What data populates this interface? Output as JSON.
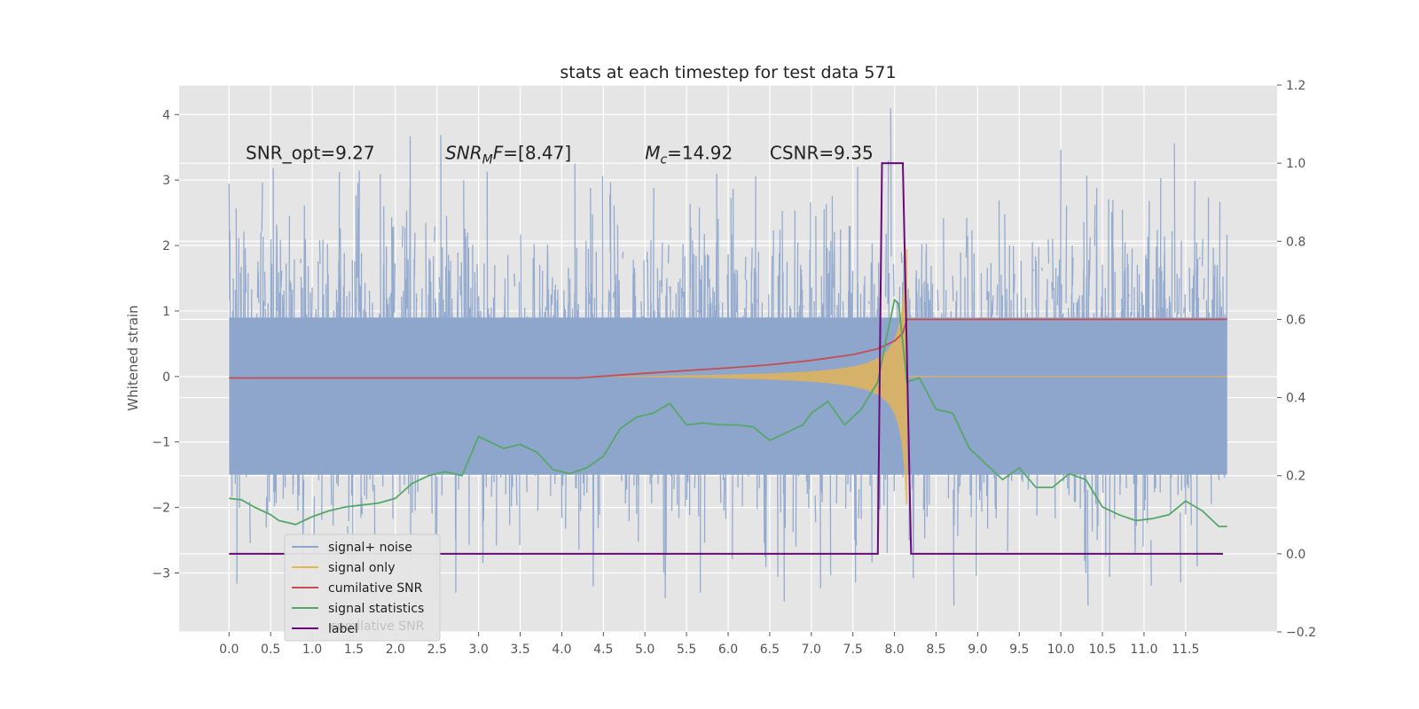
{
  "chart_data": {
    "type": "line",
    "title": "stats at each timestep for test data 571",
    "ylabel": "Whitened strain",
    "y2label": "",
    "xlim": [
      -0.6,
      12.6
    ],
    "ylim": [
      -3.9,
      4.45
    ],
    "y2lim": [
      -0.2,
      1.2
    ],
    "xticks": [
      "0.0",
      "0.5",
      "1.0",
      "1.5",
      "2.0",
      "2.5",
      "3.0",
      "3.5",
      "4.0",
      "4.5",
      "5.0",
      "5.5",
      "6.0",
      "6.5",
      "7.0",
      "7.5",
      "8.0",
      "8.5",
      "9.0",
      "9.5",
      "10.0",
      "10.5",
      "11.0",
      "11.5"
    ],
    "yticks": [
      "4",
      "3",
      "2",
      "1",
      "0",
      "−1",
      "−2",
      "−3"
    ],
    "y2ticks": [
      "1.2",
      "1.0",
      "0.8",
      "0.6",
      "0.4",
      "0.2",
      "0.0",
      "−0.2"
    ],
    "grid": true,
    "legend_position": "lower-left",
    "colors": {
      "signal_noise": "#8fa6cc",
      "signal_only": "#e6b451",
      "cumulative_snr": "#c44e52",
      "signal_statistics": "#55a868",
      "label": "#6a0a7a",
      "background": "#e5e5e5"
    },
    "annotations": [
      {
        "text": "SNR_opt=9.27",
        "x": 0.2,
        "y": 3.32
      },
      {
        "text": "=[8.47]",
        "x": 2.6,
        "y": 3.32,
        "prefix_italic": "SNR",
        "sub_italic": "M",
        "after_sub_italic": "F"
      },
      {
        "text": "=14.92",
        "x": 5.0,
        "y": 3.32,
        "prefix_italic": "M",
        "sub_italic": "c",
        "after_sub_italic": ""
      },
      {
        "text": "CSNR=9.35",
        "x": 6.5,
        "y": 3.32
      }
    ],
    "series": [
      {
        "name": "signal+ noise",
        "axis": "left",
        "style": "noise",
        "x_start": 0.0,
        "x_end": 12.0,
        "envelope_mid": 0.9,
        "envelope_low": -1.5
      },
      {
        "name": "signal only",
        "axis": "left",
        "style": "chirp",
        "x_start": 4.2,
        "x_merger": 8.15,
        "x_end": 12.0,
        "max_amp": 1.95
      },
      {
        "name": "cumilative SNR",
        "axis": "right",
        "x": [
          0.0,
          1.0,
          2.0,
          3.0,
          4.0,
          4.2,
          5.0,
          6.0,
          6.5,
          7.0,
          7.5,
          7.8,
          8.0,
          8.1,
          8.15,
          9.0,
          10.0,
          11.0,
          12.0
        ],
        "values": [
          0.45,
          0.45,
          0.45,
          0.45,
          0.45,
          0.45,
          0.462,
          0.476,
          0.484,
          0.495,
          0.51,
          0.525,
          0.545,
          0.565,
          0.6,
          0.6,
          0.6,
          0.6,
          0.6
        ]
      },
      {
        "name": "signal statistics",
        "axis": "right",
        "x": [
          0.0,
          0.15,
          0.3,
          0.5,
          0.6,
          0.8,
          1.0,
          1.2,
          1.4,
          1.6,
          1.8,
          2.0,
          2.2,
          2.4,
          2.6,
          2.8,
          3.0,
          3.1,
          3.3,
          3.5,
          3.7,
          3.9,
          4.1,
          4.3,
          4.5,
          4.7,
          4.9,
          5.1,
          5.3,
          5.5,
          5.7,
          5.9,
          6.1,
          6.3,
          6.5,
          6.7,
          6.9,
          7.0,
          7.2,
          7.4,
          7.6,
          7.8,
          7.9,
          8.0,
          8.05,
          8.15,
          8.3,
          8.5,
          8.7,
          8.9,
          9.1,
          9.3,
          9.5,
          9.7,
          9.9,
          10.1,
          10.3,
          10.5,
          10.7,
          10.9,
          11.1,
          11.3,
          11.5,
          11.7,
          11.9,
          12.0
        ],
        "values": [
          0.142,
          0.138,
          0.12,
          0.1,
          0.085,
          0.075,
          0.095,
          0.11,
          0.12,
          0.125,
          0.13,
          0.142,
          0.18,
          0.2,
          0.21,
          0.2,
          0.3,
          0.29,
          0.27,
          0.28,
          0.26,
          0.215,
          0.205,
          0.22,
          0.25,
          0.32,
          0.35,
          0.36,
          0.385,
          0.33,
          0.335,
          0.33,
          0.33,
          0.325,
          0.29,
          0.31,
          0.33,
          0.36,
          0.39,
          0.33,
          0.37,
          0.44,
          0.55,
          0.65,
          0.64,
          0.44,
          0.45,
          0.37,
          0.36,
          0.27,
          0.23,
          0.19,
          0.22,
          0.17,
          0.17,
          0.205,
          0.19,
          0.12,
          0.1,
          0.085,
          0.09,
          0.1,
          0.135,
          0.11,
          0.07,
          0.07
        ]
      },
      {
        "name": "label",
        "axis": "right",
        "x": [
          0.0,
          7.8,
          7.85,
          8.1,
          8.2,
          11.95
        ],
        "values": [
          0.0,
          0.0,
          1.0,
          1.0,
          0.0,
          0.0
        ]
      }
    ],
    "legend": [
      "signal+ noise",
      "signal only",
      "cumilative SNR",
      "signal statistics",
      "label"
    ],
    "legend_ghost_text": "cumilative SNR"
  }
}
